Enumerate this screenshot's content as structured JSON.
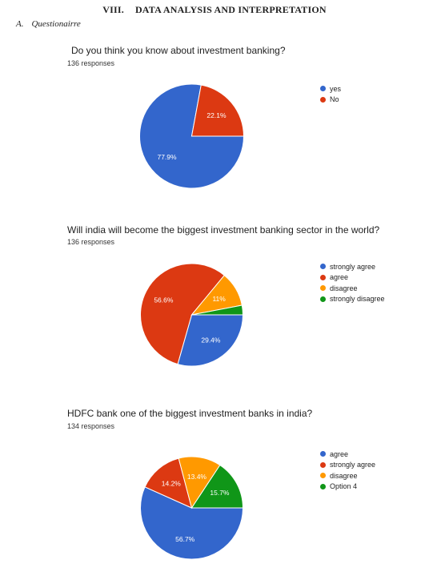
{
  "document": {
    "section_number": "VIII.",
    "section_title": "DATA ANALYSIS AND INTERPRETATION",
    "subsection_letter": "A.",
    "subsection_title": "Questionairre"
  },
  "colors": {
    "blue": "#3366cc",
    "red": "#dc3912",
    "orange": "#ff9900",
    "green": "#109618"
  },
  "chart_data": [
    {
      "type": "pie",
      "title": "Do you think you know about investment banking?",
      "subtitle": "136 responses",
      "labels": [
        "yes",
        "No"
      ],
      "values": [
        77.9,
        22.1
      ],
      "data_labels": [
        "77.9%",
        "22.1%"
      ],
      "colors": [
        "#3366cc",
        "#dc3912"
      ],
      "legend_position": "right"
    },
    {
      "type": "pie",
      "title": "Will india will become the biggest investment banking sector in the world?",
      "subtitle": "136 responses",
      "labels": [
        "strongly agree",
        "agree",
        "disagree",
        "strongly disagree"
      ],
      "values": [
        29.4,
        56.6,
        11,
        3.0
      ],
      "data_labels": [
        "29.4%",
        "56.6%",
        "11%",
        ""
      ],
      "colors": [
        "#3366cc",
        "#dc3912",
        "#ff9900",
        "#109618"
      ],
      "legend_position": "right"
    },
    {
      "type": "pie",
      "title": "HDFC bank one of the biggest investment banks in india?",
      "subtitle": "134 responses",
      "labels": [
        "agree",
        "strongly agree",
        "disagree",
        "Option 4"
      ],
      "values": [
        56.7,
        14.2,
        13.4,
        15.7
      ],
      "data_labels": [
        "56.7%",
        "14.2%",
        "13.4%",
        "15.7%"
      ],
      "colors": [
        "#3366cc",
        "#dc3912",
        "#ff9900",
        "#109618"
      ],
      "legend_position": "right"
    }
  ]
}
